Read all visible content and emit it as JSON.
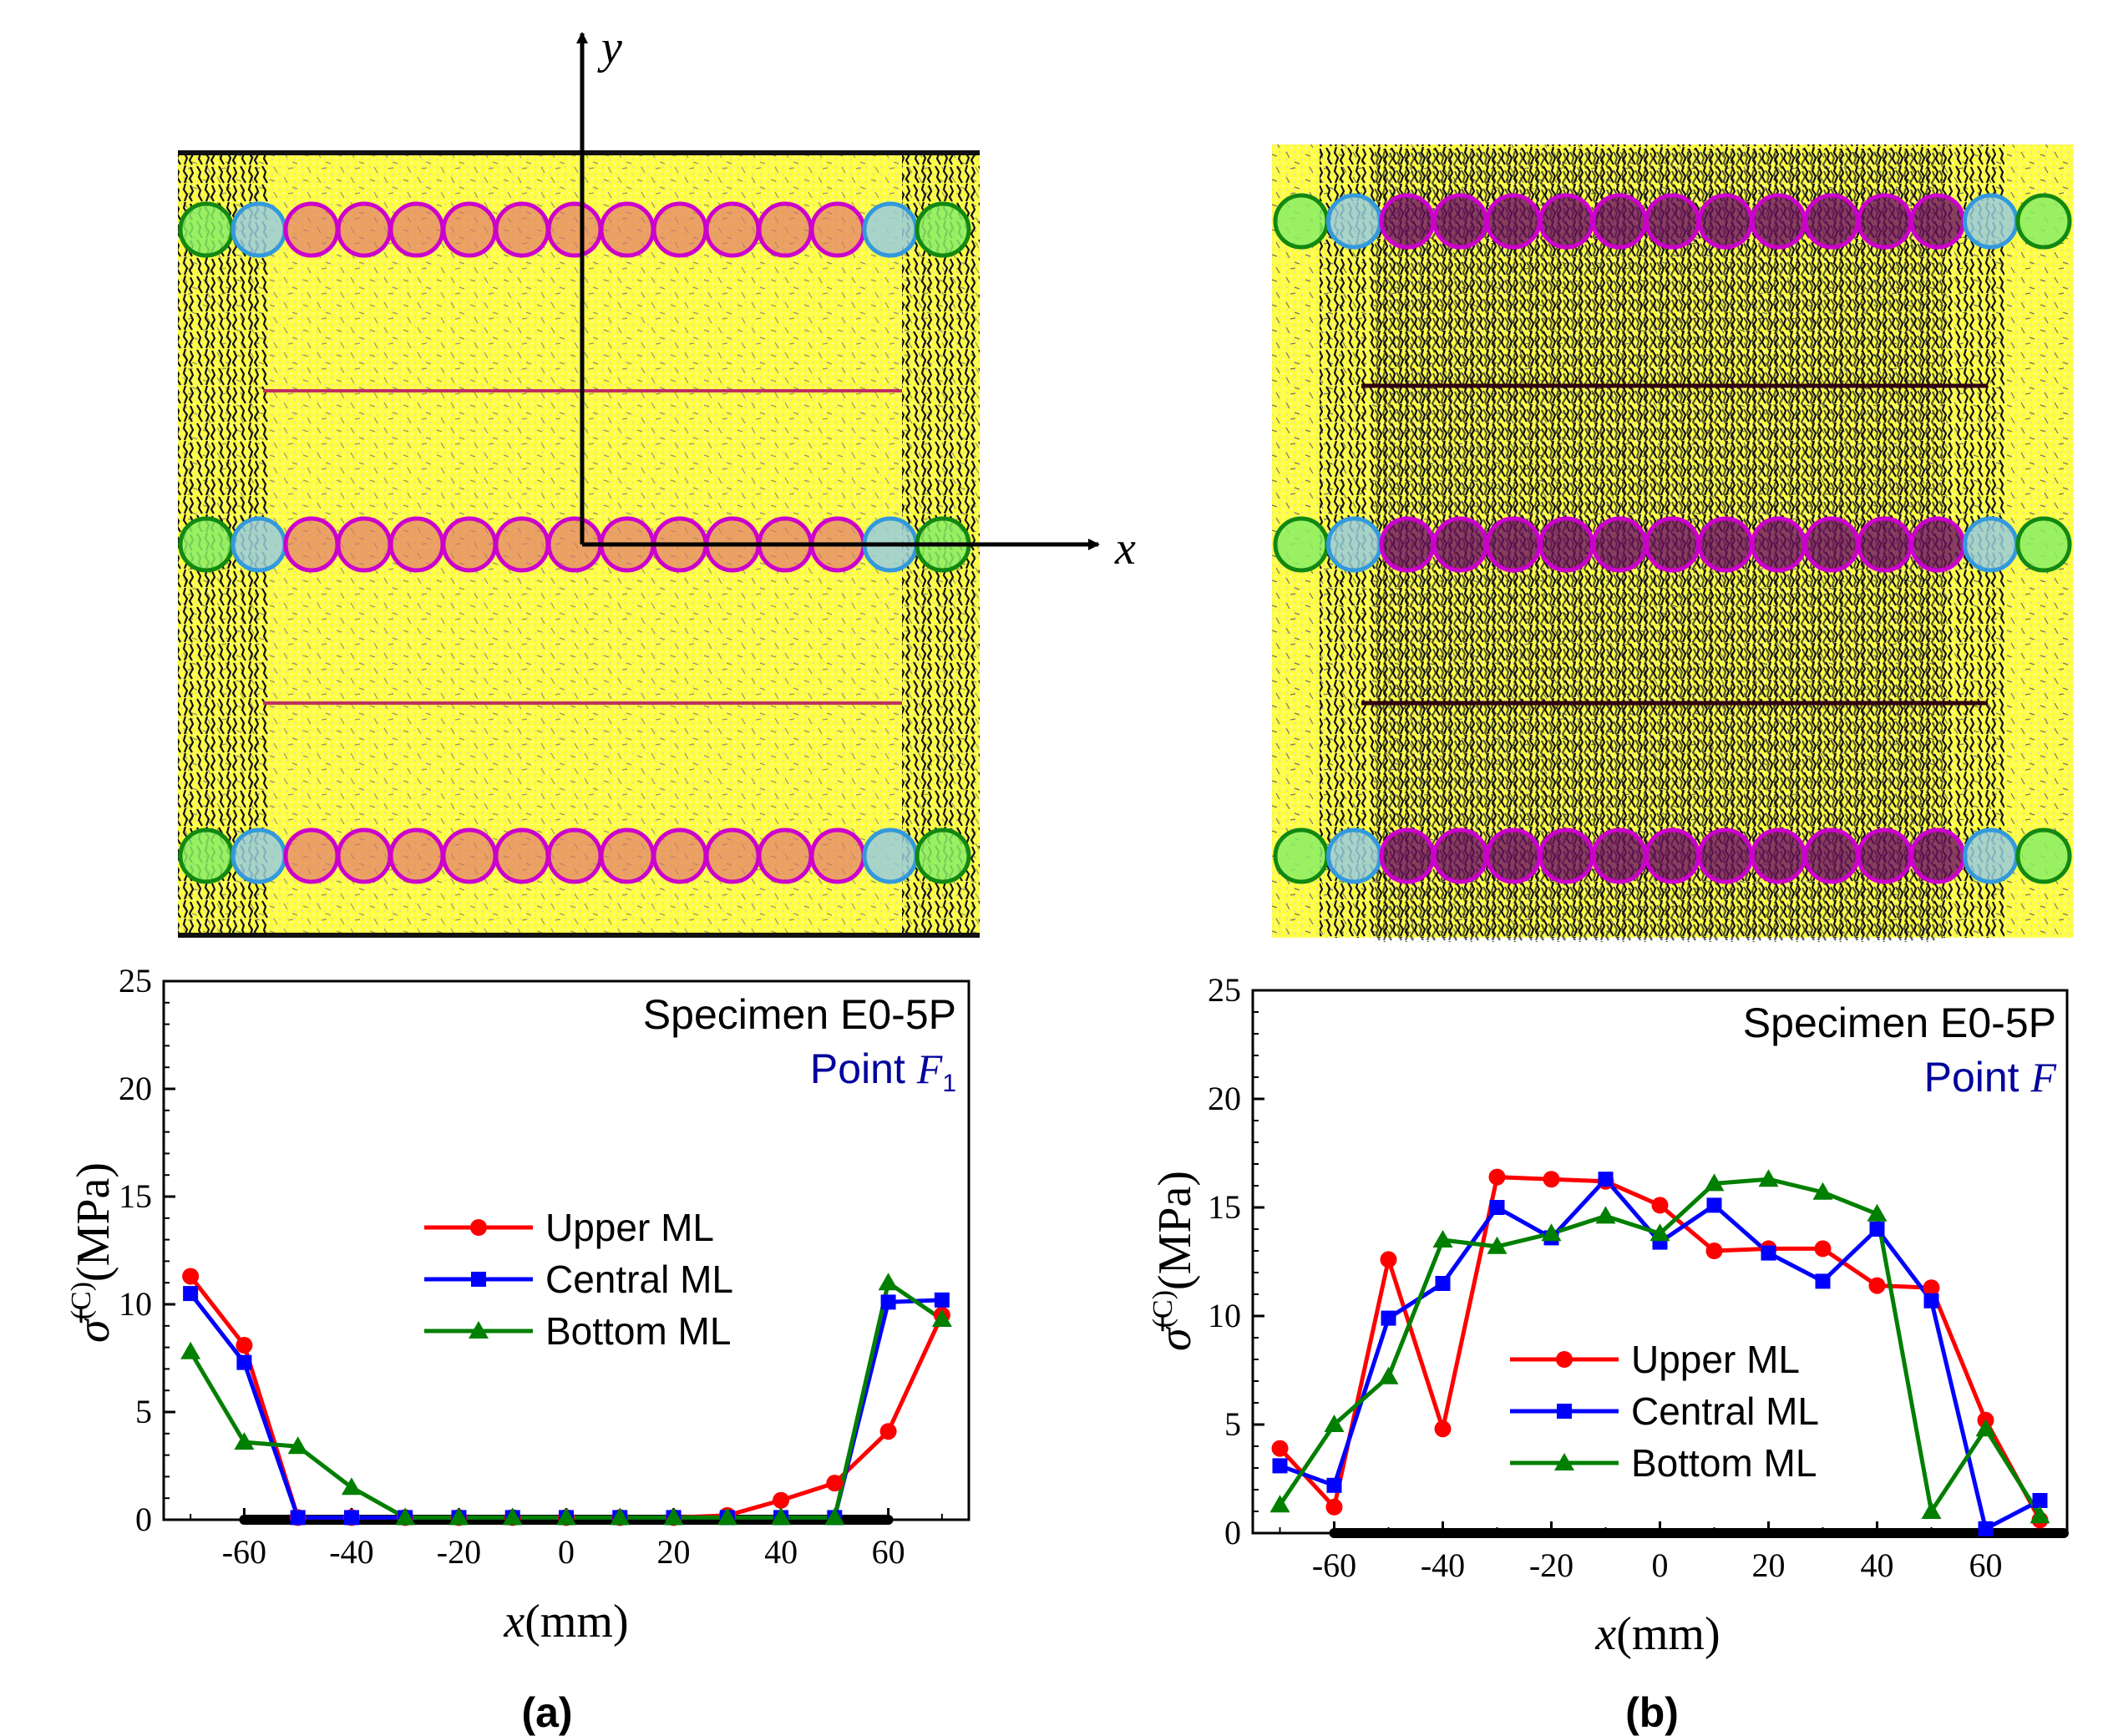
{
  "figure": {
    "panel_a_label": "(a)",
    "panel_b_label": "(b)",
    "schematic": {
      "y_axis_label": "y",
      "x_axis_label": "x"
    }
  },
  "colors": {
    "upper": "#ff0000",
    "central": "#0000ff",
    "bottom": "#007f00",
    "point_text": "#00009c",
    "yellow": "#ffff33",
    "magenta_circle": "#cc00cc",
    "blue_circle": "#3399dd",
    "green_circle": "#118811"
  },
  "chart_data": [
    {
      "type": "line",
      "panel": "(a)",
      "ylabel_symbol": "σ̄",
      "ylabel_sup": "(C)",
      "ylabel_unit": "(MPa)",
      "xlabel_var": "x",
      "xlabel_unit": "(mm)",
      "xlim": [
        -75,
        75
      ],
      "ylim": [
        0,
        25
      ],
      "xticks": [
        "-60",
        "-40",
        "-20",
        "0",
        "20",
        "40",
        "60"
      ],
      "yticks": [
        "0",
        "5",
        "10",
        "15",
        "20",
        "25"
      ],
      "annotation_specimen": "Specimen E0-5P",
      "annotation_point_prefix": "Point ",
      "annotation_point_var": "F",
      "annotation_point_sub": "1",
      "footprint": [
        -60,
        60
      ],
      "x": [
        -70,
        -60,
        -50,
        -40,
        -30,
        -20,
        -10,
        0,
        10,
        20,
        30,
        40,
        50,
        60,
        70
      ],
      "series": [
        {
          "name": "Upper ML",
          "marker": "circle",
          "values": [
            11.3,
            8.1,
            0.1,
            0.1,
            0.1,
            0.1,
            0.1,
            0.1,
            0.1,
            0.1,
            0.2,
            0.9,
            1.7,
            4.1,
            9.5
          ]
        },
        {
          "name": "Central ML",
          "marker": "square",
          "values": [
            10.5,
            7.3,
            0.1,
            0.1,
            0.1,
            0.1,
            0.1,
            0.1,
            0.1,
            0.1,
            0.1,
            0.1,
            0.1,
            10.1,
            10.2
          ]
        },
        {
          "name": "Bottom ML",
          "marker": "triangle",
          "values": [
            7.8,
            3.6,
            3.4,
            1.5,
            0.1,
            0.1,
            0.1,
            0.1,
            0.1,
            0.1,
            0.1,
            0.1,
            0.1,
            11.0,
            9.3
          ]
        }
      ]
    },
    {
      "type": "line",
      "panel": "(b)",
      "ylabel_symbol": "σ̄",
      "ylabel_sup": "(C)",
      "ylabel_unit": "(MPa)",
      "xlabel_var": "x",
      "xlabel_unit": "(mm)",
      "xlim": [
        -75,
        75
      ],
      "ylim": [
        0,
        25
      ],
      "xticks": [
        "-60",
        "-40",
        "-20",
        "0",
        "20",
        "40",
        "60"
      ],
      "yticks": [
        "0",
        "5",
        "10",
        "15",
        "20",
        "25"
      ],
      "annotation_specimen": "Specimen E0-5P",
      "annotation_point_prefix": "Point ",
      "annotation_point_var": "F",
      "annotation_point_sub": "",
      "footprint": [
        -60,
        75
      ],
      "x": [
        -70,
        -60,
        -50,
        -40,
        -30,
        -20,
        -10,
        0,
        10,
        20,
        30,
        40,
        50,
        60,
        70
      ],
      "series": [
        {
          "name": "Upper ML",
          "marker": "circle",
          "values": [
            3.9,
            1.2,
            12.6,
            4.8,
            16.4,
            16.3,
            16.2,
            15.1,
            13.0,
            13.1,
            13.1,
            11.4,
            11.3,
            5.2,
            0.6
          ]
        },
        {
          "name": "Central ML",
          "marker": "square",
          "values": [
            3.1,
            2.2,
            9.9,
            11.5,
            15.0,
            13.6,
            16.3,
            13.4,
            15.1,
            12.9,
            11.6,
            14.0,
            10.7,
            0.2,
            1.5
          ]
        },
        {
          "name": "Bottom ML",
          "marker": "triangle",
          "values": [
            1.3,
            5.0,
            7.2,
            13.5,
            13.2,
            13.8,
            14.6,
            13.8,
            16.1,
            16.3,
            15.7,
            14.7,
            1.0,
            4.8,
            0.8
          ]
        }
      ]
    }
  ]
}
